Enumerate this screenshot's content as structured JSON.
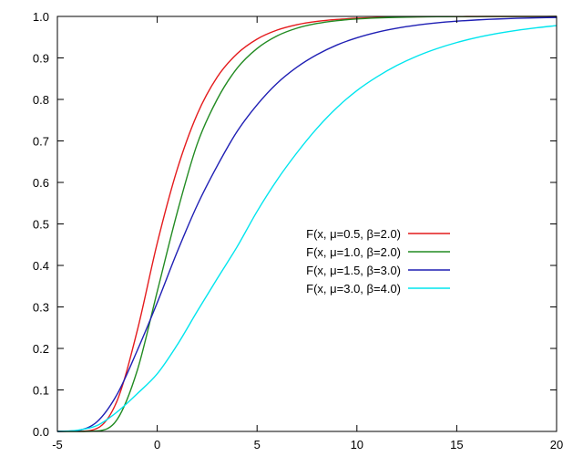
{
  "chart_data": {
    "type": "line",
    "xlim": [
      -5,
      20
    ],
    "ylim": [
      0.0,
      1.0
    ],
    "grid": false,
    "legend_position": "center-right",
    "x_ticks": [
      "-5",
      "0",
      "5",
      "10",
      "15",
      "20"
    ],
    "y_ticks": [
      "0.0",
      "0.1",
      "0.2",
      "0.3",
      "0.4",
      "0.5",
      "0.6",
      "0.7",
      "0.8",
      "0.9",
      "1.0"
    ],
    "x_tick_values": [
      -5,
      0,
      5,
      10,
      15,
      20
    ],
    "y_tick_values": [
      0,
      0.1,
      0.2,
      0.3,
      0.4,
      0.5,
      0.6,
      0.7,
      0.8,
      0.9,
      1.0
    ],
    "x": [
      -5,
      -4,
      -3,
      -2,
      -1,
      0,
      1,
      2,
      3,
      4,
      5,
      6,
      7,
      8,
      9,
      10,
      11,
      12,
      13,
      14,
      15,
      16,
      17,
      18,
      19,
      20
    ],
    "series": [
      {
        "name": "F(x, μ=0.5, β=2.0)",
        "color": "#e41a1c",
        "values": [
          0.0,
          0.0001,
          0.0076,
          0.0751,
          0.243,
          0.4536,
          0.6314,
          0.764,
          0.8536,
          0.9101,
          0.9454,
          0.967,
          0.9801,
          0.988,
          0.9927,
          0.9956,
          0.9974,
          0.9984,
          0.999,
          0.9994,
          0.9996,
          0.9998,
          0.9999,
          0.9999,
          0.9999,
          1.0
        ]
      },
      {
        "name": "F(x, μ=1.0, β=2.0)",
        "color": "#228b22",
        "values": [
          0.0,
          0.0,
          0.0011,
          0.0293,
          0.147,
          0.337,
          0.5274,
          0.6922,
          0.8,
          0.8751,
          0.9227,
          0.953,
          0.9717,
          0.983,
          0.9898,
          0.9939,
          0.9963,
          0.9978,
          0.9987,
          0.9992,
          0.9995,
          0.9997,
          0.9998,
          0.9999,
          0.9999,
          1.0
        ]
      },
      {
        "name": "F(x, μ=1.5, β=3.0)",
        "color": "#1f1fb4",
        "values": [
          0.0,
          0.0023,
          0.024,
          0.0902,
          0.1951,
          0.3102,
          0.4326,
          0.5448,
          0.6394,
          0.7227,
          0.7869,
          0.8387,
          0.8778,
          0.9079,
          0.9312,
          0.9485,
          0.9617,
          0.9715,
          0.9789,
          0.9844,
          0.9885,
          0.9915,
          0.9937,
          0.9954,
          0.9966,
          0.9975
        ]
      },
      {
        "name": "F(x, μ=3.0, β=4.0)",
        "color": "#00e5ee",
        "values": [
          0.0002,
          0.0029,
          0.0146,
          0.0473,
          0.091,
          0.1388,
          0.2084,
          0.2893,
          0.3679,
          0.4449,
          0.5301,
          0.6058,
          0.6717,
          0.7304,
          0.7803,
          0.8214,
          0.8543,
          0.8818,
          0.9042,
          0.9223,
          0.9371,
          0.949,
          0.9586,
          0.9664,
          0.9727,
          0.9779
        ]
      }
    ]
  }
}
